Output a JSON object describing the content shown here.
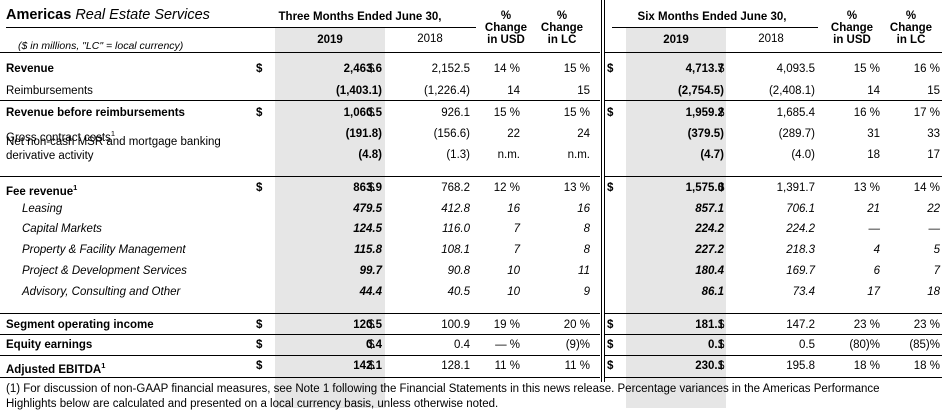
{
  "header": {
    "title_bold": "Americas",
    "title_italic": "Real Estate Services",
    "subtitle": "($ in millions, \"LC\" = local currency)",
    "three_months": "Three Months Ended June 30,",
    "six_months": "Six Months Ended June 30,",
    "year_a": "2019",
    "year_b": "2018",
    "pct": "%",
    "chg_usd_1": "Change",
    "chg_usd_2": "in USD",
    "chg_lc_1": "Change",
    "chg_lc_2": "in LC"
  },
  "rows": [
    {
      "label": "Revenue",
      "style": "bold",
      "dollar": true,
      "q2019": "2,463.6",
      "q2018": "2,152.5",
      "qusd": "14 %",
      "qlc": "15 %",
      "h2019": "4,713.7",
      "h2018": "4,093.5",
      "husd": "15 %",
      "hlc": "16 %"
    },
    {
      "label": "Reimbursements",
      "style": "normal",
      "dollar": false,
      "q2019": "(1,403.1)",
      "q2018": "(1,226.4)",
      "qusd": "14",
      "qlc": "15",
      "h2019": "(2,754.5)",
      "h2018": "(2,408.1)",
      "husd": "14",
      "hlc": "15"
    },
    {
      "label": "Revenue before reimbursements",
      "style": "bold",
      "dollar": true,
      "q2019": "1,060.5",
      "q2018": "926.1",
      "qusd": "15 %",
      "qlc": "15 %",
      "h2019": "1,959.2",
      "h2018": "1,685.4",
      "husd": "16 %",
      "hlc": "17 %"
    },
    {
      "label": "Gross contract costs",
      "sup": "1",
      "style": "normal",
      "dollar": false,
      "q2019": "(191.8)",
      "q2018": "(156.6)",
      "qusd": "22",
      "qlc": "24",
      "h2019": "(379.5)",
      "h2018": "(289.7)",
      "husd": "31",
      "hlc": "33"
    },
    {
      "label": "Net non-cash MSR and mortgage banking",
      "label2": "derivative activity",
      "style": "normal",
      "dollar": false,
      "q2019": "(4.8)",
      "q2018": "(1.3)",
      "qusd": "n.m.",
      "qlc": "n.m.",
      "h2019": "(4.7)",
      "h2018": "(4.0)",
      "husd": "18",
      "hlc": "17"
    },
    {
      "label": "Fee revenue",
      "sup": "1",
      "style": "bold",
      "dollar": true,
      "q2019": "863.9",
      "q2018": "768.2",
      "qusd": "12 %",
      "qlc": "13 %",
      "h2019": "1,575.0",
      "h2018": "1,391.7",
      "husd": "13 %",
      "hlc": "14 %"
    },
    {
      "label": "Leasing",
      "style": "italic",
      "dollar": false,
      "q2019": "479.5",
      "q2018": "412.8",
      "qusd": "16",
      "qlc": "16",
      "h2019": "857.1",
      "h2018": "706.1",
      "husd": "21",
      "hlc": "22"
    },
    {
      "label": "Capital Markets",
      "style": "italic",
      "dollar": false,
      "q2019": "124.5",
      "q2018": "116.0",
      "qusd": "7",
      "qlc": "8",
      "h2019": "224.2",
      "h2018": "224.2",
      "husd": "—",
      "hlc": "—"
    },
    {
      "label": "Property & Facility Management",
      "style": "italic",
      "dollar": false,
      "q2019": "115.8",
      "q2018": "108.1",
      "qusd": "7",
      "qlc": "8",
      "h2019": "227.2",
      "h2018": "218.3",
      "husd": "4",
      "hlc": "5"
    },
    {
      "label": "Project & Development Services",
      "style": "italic",
      "dollar": false,
      "q2019": "99.7",
      "q2018": "90.8",
      "qusd": "10",
      "qlc": "11",
      "h2019": "180.4",
      "h2018": "169.7",
      "husd": "6",
      "hlc": "7"
    },
    {
      "label": "Advisory, Consulting and Other",
      "style": "italic",
      "dollar": false,
      "q2019": "44.4",
      "q2018": "40.5",
      "qusd": "10",
      "qlc": "9",
      "h2019": "86.1",
      "h2018": "73.4",
      "husd": "17",
      "hlc": "18"
    },
    {
      "label": "Segment operating income",
      "style": "bold",
      "dollar": true,
      "q2019": "120.5",
      "q2018": "100.9",
      "qusd": "19 %",
      "qlc": "20 %",
      "h2019": "181.1",
      "h2018": "147.2",
      "husd": "23 %",
      "hlc": "23 %"
    },
    {
      "label": "Equity earnings",
      "style": "bold",
      "dollar": true,
      "q2019": "0.4",
      "q2018": "0.4",
      "qusd": "— %",
      "qlc": "(9)%",
      "h2019": "0.1",
      "h2018": "0.5",
      "husd": "(80)%",
      "hlc": "(85)%"
    },
    {
      "label": "Adjusted EBITDA",
      "sup": "1",
      "style": "bold",
      "dollar": true,
      "q2019": "142.1",
      "q2018": "128.1",
      "qusd": "11 %",
      "qlc": "11 %",
      "h2019": "230.1",
      "h2018": "195.8",
      "husd": "18 %",
      "hlc": "18 %"
    }
  ],
  "dollar_sign": "$",
  "footnote": "(1) For discussion of non-GAAP financial measures, see Note 1 following the Financial Statements in this news release. Percentage variances in the Americas Performance Highlights below are calculated and presented on a local currency basis, unless otherwise noted."
}
